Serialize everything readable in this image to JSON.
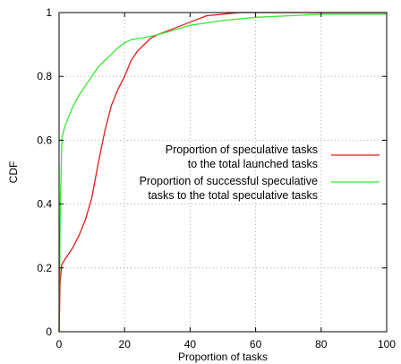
{
  "chart_data": {
    "type": "line",
    "xlabel": "Proportion of tasks",
    "ylabel": "CDF",
    "xlim": [
      0,
      100
    ],
    "ylim": [
      0,
      1
    ],
    "x_ticks": [
      "0",
      "20",
      "40",
      "60",
      "80",
      "100"
    ],
    "y_ticks": [
      "0",
      "0.2",
      "0.4",
      "0.6",
      "0.8",
      "1"
    ],
    "grid": true,
    "grid_style": "dotted",
    "legend_position": "center-right",
    "series": [
      {
        "name_lines": [
          "Proportion of speculative tasks",
          "to the total launched tasks"
        ],
        "color": "#e41a1c",
        "points": [
          [
            0,
            0
          ],
          [
            0.3,
            0.15
          ],
          [
            0.8,
            0.21
          ],
          [
            2,
            0.23
          ],
          [
            4,
            0.26
          ],
          [
            6,
            0.3
          ],
          [
            8,
            0.35
          ],
          [
            10,
            0.42
          ],
          [
            12,
            0.53
          ],
          [
            14,
            0.63
          ],
          [
            16,
            0.71
          ],
          [
            18,
            0.76
          ],
          [
            20,
            0.8
          ],
          [
            22,
            0.85
          ],
          [
            24,
            0.88
          ],
          [
            26,
            0.9
          ],
          [
            28,
            0.92
          ],
          [
            30,
            0.93
          ],
          [
            35,
            0.95
          ],
          [
            40,
            0.97
          ],
          [
            45,
            0.99
          ],
          [
            50,
            0.995
          ],
          [
            55,
            1.0
          ],
          [
            100,
            1.0
          ]
        ]
      },
      {
        "name_lines": [
          "Proportion of successful speculative",
          "tasks to the total speculative tasks"
        ],
        "color": "#39e639",
        "points": [
          [
            0,
            0
          ],
          [
            0.4,
            0.42
          ],
          [
            0.9,
            0.61
          ],
          [
            2,
            0.65
          ],
          [
            4,
            0.7
          ],
          [
            6,
            0.74
          ],
          [
            8,
            0.77
          ],
          [
            10,
            0.8
          ],
          [
            12,
            0.83
          ],
          [
            14,
            0.85
          ],
          [
            16,
            0.87
          ],
          [
            18,
            0.89
          ],
          [
            20,
            0.905
          ],
          [
            22,
            0.915
          ],
          [
            25,
            0.92
          ],
          [
            30,
            0.93
          ],
          [
            35,
            0.945
          ],
          [
            40,
            0.96
          ],
          [
            50,
            0.975
          ],
          [
            60,
            0.985
          ],
          [
            70,
            0.99
          ],
          [
            80,
            0.995
          ],
          [
            100,
            0.995
          ]
        ]
      }
    ]
  }
}
